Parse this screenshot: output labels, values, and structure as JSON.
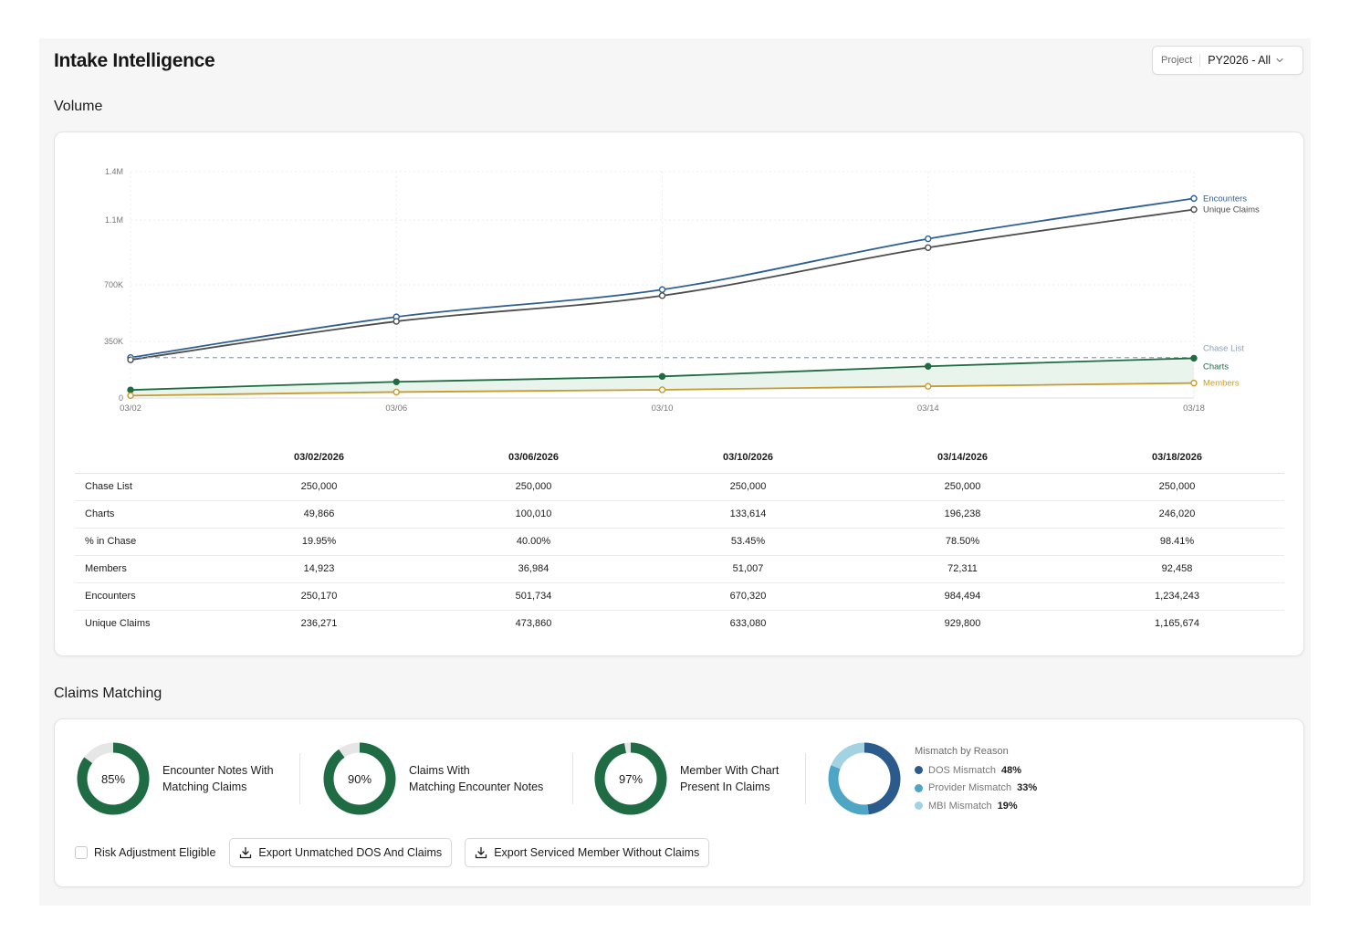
{
  "header": {
    "title": "Intake Intelligence",
    "project_label": "Project",
    "project_value": "PY2026 - All"
  },
  "volume": {
    "section_title": "Volume",
    "table": {
      "columns": [
        "03/02/2026",
        "03/06/2026",
        "03/10/2026",
        "03/14/2026",
        "03/18/2026"
      ],
      "rows": [
        {
          "label": "Chase List",
          "values": [
            "250,000",
            "250,000",
            "250,000",
            "250,000",
            "250,000"
          ]
        },
        {
          "label": "Charts",
          "values": [
            "49,866",
            "100,010",
            "133,614",
            "196,238",
            "246,020"
          ]
        },
        {
          "label": "% in Chase",
          "values": [
            "19.95%",
            "40.00%",
            "53.45%",
            "78.50%",
            "98.41%"
          ]
        },
        {
          "label": "Members",
          "values": [
            "14,923",
            "36,984",
            "51,007",
            "72,311",
            "92,458"
          ]
        },
        {
          "label": "Encounters",
          "values": [
            "250,170",
            "501,734",
            "670,320",
            "984,494",
            "1,234,243"
          ]
        },
        {
          "label": "Unique Claims",
          "values": [
            "236,271",
            "473,860",
            "633,080",
            "929,800",
            "1,165,674"
          ]
        }
      ]
    }
  },
  "chart_data": {
    "type": "line",
    "title": "",
    "xlabel": "",
    "ylabel": "",
    "x": [
      "03/02",
      "03/06",
      "03/10",
      "03/14",
      "03/18"
    ],
    "ylim": [
      0,
      1400000
    ],
    "yticks": [
      0,
      350000,
      700000,
      1100000,
      1400000
    ],
    "ytick_labels": [
      "0",
      "350K",
      "700K",
      "1.1M",
      "1.4M"
    ],
    "grid": true,
    "legend": "right, inline at line ends",
    "series": [
      {
        "name": "Encounters",
        "color": "#2e5f93",
        "values": [
          250170,
          501734,
          670320,
          984494,
          1234243
        ],
        "style": "solid"
      },
      {
        "name": "Unique Claims",
        "color": "#4d4d4d",
        "values": [
          236271,
          473860,
          633080,
          929800,
          1165674
        ],
        "style": "solid"
      },
      {
        "name": "Chase List",
        "color": "#8aa2bd",
        "values": [
          250000,
          250000,
          250000,
          250000,
          250000
        ],
        "style": "dashed"
      },
      {
        "name": "Charts",
        "color": "#1f6b43",
        "values": [
          49866,
          100010,
          133614,
          196238,
          246020
        ],
        "style": "solid",
        "area": true
      },
      {
        "name": "Members",
        "color": "#c99a2e",
        "values": [
          14923,
          36984,
          51007,
          72311,
          92458
        ],
        "style": "solid"
      }
    ]
  },
  "claims_matching": {
    "section_title": "Claims Matching",
    "donuts": [
      {
        "pct": 85,
        "pct_label": "85%",
        "line1": "Encounter Notes With",
        "line2": "Matching Claims"
      },
      {
        "pct": 90,
        "pct_label": "90%",
        "line1": "Claims With",
        "line2": "Matching Encounter Notes"
      },
      {
        "pct": 97,
        "pct_label": "97%",
        "line1": "Member With Chart",
        "line2": "Present In Claims"
      }
    ],
    "mismatch": {
      "title": "Mismatch by Reason",
      "items": [
        {
          "name": "DOS Mismatch",
          "pct": 48,
          "pct_label": "48%",
          "color": "#2a5b8c"
        },
        {
          "name": "Provider Mismatch",
          "pct": 33,
          "pct_label": "33%",
          "color": "#4ea6c4"
        },
        {
          "name": "MBI Mismatch",
          "pct": 19,
          "pct_label": "19%",
          "color": "#a3d3e2"
        }
      ]
    },
    "checkbox_label": "Risk Adjustment Eligible",
    "export_unmatched_label": "Export Unmatched DOS And Claims",
    "export_serviced_label": "Export Serviced Member Without Claims"
  },
  "colors": {
    "donut_fill": "#1f6b43",
    "donut_track": "#e6e6e6"
  }
}
